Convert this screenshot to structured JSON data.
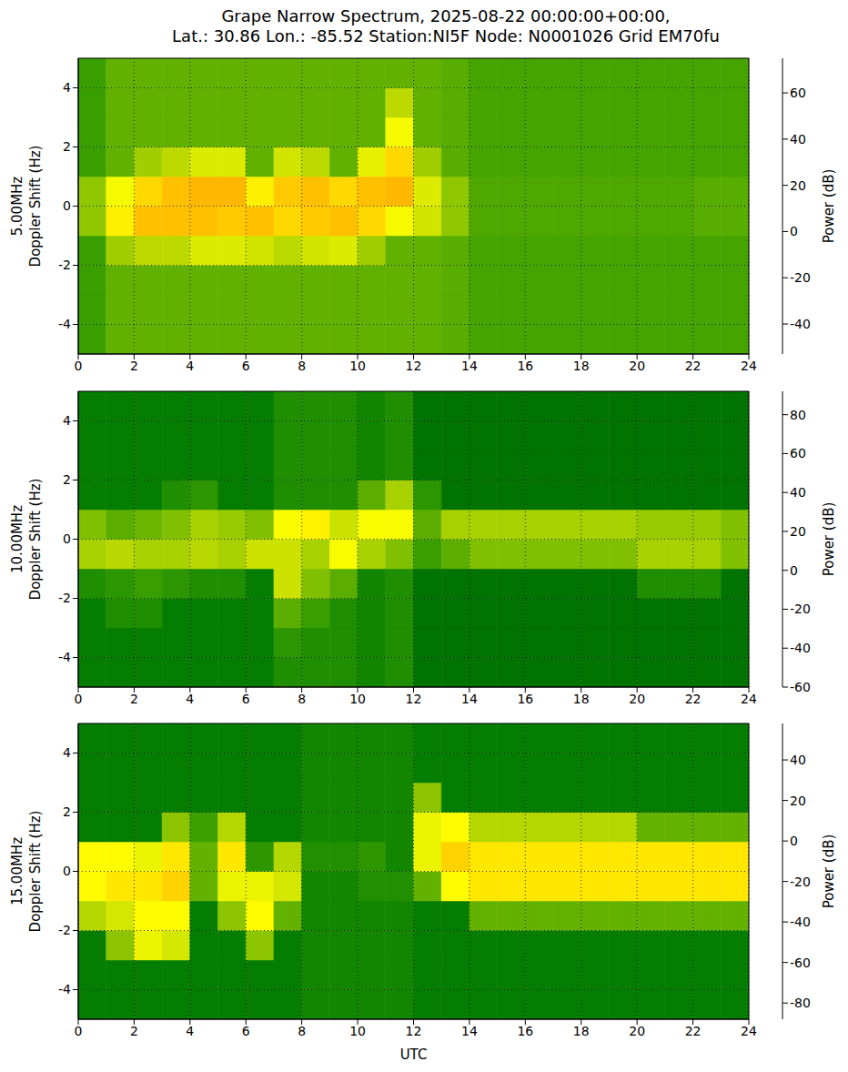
{
  "title": "Grape Narrow Spectrum, 2025-08-22 00:00:00+00:00,\nLat.: 30.86 Lon.: -85.52 Station:NI5F Node: N0001026 Grid EM70fu",
  "chart_data": [
    {
      "type": "heatmap",
      "ylabel": "5.00MHz\nDoppler Shift (Hz)",
      "xlim": [
        0,
        24
      ],
      "xticks": [
        0,
        2,
        4,
        6,
        8,
        10,
        12,
        14,
        16,
        18,
        20,
        22,
        24
      ],
      "ylim": [
        -5,
        5
      ],
      "yticks": [
        -4,
        -2,
        0,
        2,
        4
      ],
      "grid": true,
      "xbins": [
        0,
        1,
        2,
        3,
        4,
        5,
        6,
        7,
        8,
        9,
        10,
        11,
        12,
        13,
        14,
        15,
        16,
        17,
        18,
        19,
        20,
        21,
        22,
        23,
        24
      ],
      "ybins": [
        -5,
        -4,
        -3,
        -2,
        -1,
        0,
        1,
        2,
        3,
        4,
        5
      ],
      "cells": [
        [
          10,
          15,
          15,
          15,
          15,
          15,
          15,
          15,
          15,
          15,
          15,
          15,
          15,
          14,
          12,
          12,
          12,
          12,
          12,
          12,
          12,
          12,
          12,
          12
        ],
        [
          10,
          15,
          15,
          15,
          15,
          15,
          15,
          15,
          15,
          15,
          15,
          15,
          15,
          14,
          12,
          12,
          12,
          12,
          12,
          12,
          12,
          12,
          12,
          12
        ],
        [
          10,
          15,
          15,
          15,
          15,
          15,
          15,
          15,
          15,
          15,
          15,
          15,
          15,
          14,
          12,
          12,
          12,
          12,
          12,
          12,
          12,
          12,
          12,
          12
        ],
        [
          10,
          22,
          25,
          25,
          30,
          30,
          28,
          25,
          28,
          30,
          22,
          15,
          15,
          14,
          12,
          12,
          12,
          12,
          12,
          12,
          12,
          12,
          12,
          12
        ],
        [
          20,
          40,
          50,
          50,
          50,
          48,
          50,
          45,
          48,
          50,
          45,
          35,
          28,
          20,
          13,
          13,
          13,
          13,
          13,
          13,
          13,
          13,
          14,
          14
        ],
        [
          20,
          35,
          45,
          50,
          52,
          52,
          40,
          48,
          50,
          45,
          50,
          52,
          30,
          20,
          13,
          13,
          13,
          13,
          13,
          13,
          13,
          13,
          14,
          14
        ],
        [
          10,
          15,
          22,
          25,
          30,
          30,
          15,
          28,
          25,
          15,
          32,
          45,
          22,
          14,
          12,
          12,
          12,
          12,
          12,
          12,
          12,
          12,
          12,
          12
        ],
        [
          10,
          15,
          15,
          15,
          15,
          15,
          15,
          15,
          15,
          15,
          15,
          35,
          15,
          14,
          12,
          12,
          12,
          12,
          12,
          12,
          12,
          12,
          12,
          12
        ],
        [
          10,
          15,
          15,
          15,
          15,
          15,
          15,
          15,
          15,
          15,
          15,
          25,
          15,
          14,
          12,
          12,
          12,
          12,
          12,
          12,
          12,
          12,
          12,
          12
        ],
        [
          10,
          15,
          15,
          15,
          15,
          15,
          15,
          15,
          15,
          15,
          15,
          15,
          15,
          14,
          12,
          12,
          12,
          12,
          12,
          12,
          12,
          12,
          12,
          12
        ]
      ],
      "colorbar": {
        "label": "Power (dB)",
        "lim": [
          -53,
          75
        ],
        "ticks": [
          -40,
          -20,
          0,
          20,
          40,
          60
        ]
      }
    },
    {
      "type": "heatmap",
      "ylabel": "10.00MHz\nDoppler Shift (Hz)",
      "xlim": [
        0,
        24
      ],
      "xticks": [
        0,
        2,
        4,
        6,
        8,
        10,
        12,
        14,
        16,
        18,
        20,
        22,
        24
      ],
      "ylim": [
        -5,
        5
      ],
      "yticks": [
        -4,
        -2,
        0,
        2,
        4
      ],
      "grid": true,
      "xbins": [
        0,
        1,
        2,
        3,
        4,
        5,
        6,
        7,
        8,
        9,
        10,
        11,
        12,
        13,
        14,
        15,
        16,
        17,
        18,
        19,
        20,
        21,
        22,
        23,
        24
      ],
      "ybins": [
        -5,
        -4,
        -3,
        -2,
        -1,
        0,
        1,
        2,
        3,
        4,
        5
      ],
      "cells": [
        [
          -5,
          -5,
          -5,
          -5,
          -5,
          -5,
          -5,
          5,
          5,
          5,
          0,
          5,
          -10,
          -10,
          -10,
          -10,
          -10,
          -10,
          -10,
          -10,
          -10,
          -10,
          -10,
          -10
        ],
        [
          -5,
          -5,
          -5,
          -5,
          -5,
          -5,
          -5,
          10,
          5,
          5,
          0,
          5,
          -10,
          -10,
          -10,
          -10,
          -10,
          -10,
          -10,
          -10,
          -10,
          -10,
          -10,
          -10
        ],
        [
          -5,
          5,
          5,
          -5,
          -5,
          -5,
          -5,
          20,
          15,
          5,
          0,
          5,
          -10,
          -10,
          -10,
          -10,
          -10,
          -10,
          -10,
          -10,
          -10,
          -10,
          -10,
          -10
        ],
        [
          5,
          10,
          15,
          10,
          5,
          5,
          -5,
          35,
          25,
          20,
          0,
          5,
          -10,
          -10,
          -10,
          -10,
          -10,
          -10,
          -10,
          -10,
          5,
          5,
          5,
          -10
        ],
        [
          30,
          32,
          30,
          30,
          32,
          30,
          35,
          35,
          30,
          45,
          30,
          25,
          15,
          20,
          25,
          25,
          25,
          25,
          25,
          25,
          30,
          30,
          30,
          25
        ],
        [
          25,
          20,
          22,
          25,
          30,
          28,
          25,
          45,
          50,
          35,
          45,
          45,
          20,
          30,
          30,
          30,
          30,
          30,
          30,
          30,
          28,
          28,
          28,
          25
        ],
        [
          -5,
          -5,
          -5,
          5,
          10,
          -5,
          -5,
          5,
          5,
          5,
          20,
          30,
          10,
          -10,
          -10,
          -10,
          -10,
          -10,
          -10,
          -10,
          -10,
          -10,
          -10,
          -10
        ],
        [
          -5,
          -5,
          -5,
          -5,
          -5,
          -5,
          -5,
          5,
          5,
          5,
          0,
          5,
          -10,
          -10,
          -10,
          -10,
          -10,
          -10,
          -10,
          -10,
          -10,
          -10,
          -10,
          -10
        ],
        [
          -5,
          -5,
          -5,
          -5,
          -5,
          -5,
          -5,
          5,
          5,
          5,
          0,
          5,
          -10,
          -10,
          -10,
          -10,
          -10,
          -10,
          -10,
          -10,
          -10,
          -10,
          -10,
          -10
        ],
        [
          -5,
          -5,
          -5,
          -5,
          -5,
          -5,
          -5,
          5,
          5,
          5,
          0,
          5,
          -10,
          -10,
          -10,
          -10,
          -10,
          -10,
          -10,
          -10,
          -10,
          -10,
          -10,
          -10
        ]
      ],
      "colorbar": {
        "label": "Power (dB)",
        "lim": [
          -60,
          92
        ],
        "ticks": [
          -60,
          -40,
          -20,
          0,
          20,
          40,
          60,
          80
        ]
      }
    },
    {
      "type": "heatmap",
      "ylabel": "15.00MHz\nDoppler Shift (Hz)",
      "xlabel": "UTC",
      "xlim": [
        0,
        24
      ],
      "xticks": [
        0,
        2,
        4,
        6,
        8,
        10,
        12,
        14,
        16,
        18,
        20,
        22,
        24
      ],
      "ylim": [
        -5,
        5
      ],
      "yticks": [
        -4,
        -2,
        0,
        2,
        4
      ],
      "grid": true,
      "xbins": [
        0,
        1,
        2,
        3,
        4,
        5,
        6,
        7,
        8,
        9,
        10,
        11,
        12,
        13,
        14,
        15,
        16,
        17,
        18,
        19,
        20,
        21,
        22,
        23,
        24
      ],
      "ybins": [
        -5,
        -4,
        -3,
        -2,
        -1,
        0,
        1,
        2,
        3,
        4,
        5
      ],
      "cells": [
        [
          -35,
          -35,
          -35,
          -35,
          -35,
          -35,
          -35,
          -35,
          -30,
          -30,
          -30,
          -30,
          -35,
          -35,
          -35,
          -35,
          -35,
          -35,
          -35,
          -35,
          -35,
          -35,
          -35,
          -35
        ],
        [
          -35,
          -35,
          -35,
          -35,
          -35,
          -35,
          -35,
          -35,
          -30,
          -30,
          -30,
          -30,
          -35,
          -35,
          -35,
          -35,
          -35,
          -35,
          -35,
          -35,
          -35,
          -35,
          -35,
          -35
        ],
        [
          -35,
          -5,
          10,
          5,
          -35,
          -35,
          -5,
          -35,
          -30,
          -30,
          -30,
          -30,
          -35,
          -35,
          -35,
          -35,
          -35,
          -35,
          -35,
          -35,
          -35,
          -35,
          -35,
          -35
        ],
        [
          0,
          5,
          15,
          15,
          -35,
          -5,
          15,
          -10,
          -30,
          -30,
          -30,
          -30,
          -35,
          -35,
          -10,
          -10,
          -10,
          -10,
          -10,
          -10,
          -10,
          -10,
          -10,
          -10
        ],
        [
          15,
          20,
          20,
          25,
          -10,
          10,
          10,
          5,
          -30,
          -30,
          -25,
          -25,
          -10,
          15,
          20,
          20,
          20,
          20,
          20,
          20,
          20,
          20,
          20,
          20
        ],
        [
          15,
          15,
          10,
          20,
          -10,
          20,
          -20,
          0,
          -25,
          -25,
          -20,
          -30,
          10,
          25,
          20,
          20,
          20,
          20,
          20,
          20,
          20,
          20,
          20,
          20
        ],
        [
          -35,
          -35,
          -35,
          -5,
          -15,
          0,
          -35,
          -35,
          -30,
          -30,
          -30,
          -30,
          10,
          15,
          0,
          0,
          0,
          0,
          0,
          0,
          -10,
          -10,
          -10,
          -10
        ],
        [
          -35,
          -35,
          -35,
          -35,
          -35,
          -35,
          -35,
          -35,
          -30,
          -30,
          -30,
          -30,
          -5,
          -35,
          -35,
          -35,
          -35,
          -35,
          -35,
          -35,
          -35,
          -35,
          -35,
          -35
        ],
        [
          -35,
          -35,
          -35,
          -35,
          -35,
          -35,
          -35,
          -35,
          -30,
          -30,
          -30,
          -30,
          -35,
          -35,
          -35,
          -35,
          -35,
          -35,
          -35,
          -35,
          -35,
          -35,
          -35,
          -35
        ],
        [
          -35,
          -35,
          -35,
          -35,
          -35,
          -35,
          -35,
          -35,
          -30,
          -30,
          -30,
          -30,
          -35,
          -35,
          -35,
          -35,
          -35,
          -35,
          -35,
          -35,
          -35,
          -35,
          -35,
          -35
        ]
      ],
      "colorbar": {
        "label": "Power (dB)",
        "lim": [
          -88,
          58
        ],
        "ticks": [
          -80,
          -60,
          -40,
          -20,
          0,
          20,
          40
        ]
      }
    }
  ]
}
